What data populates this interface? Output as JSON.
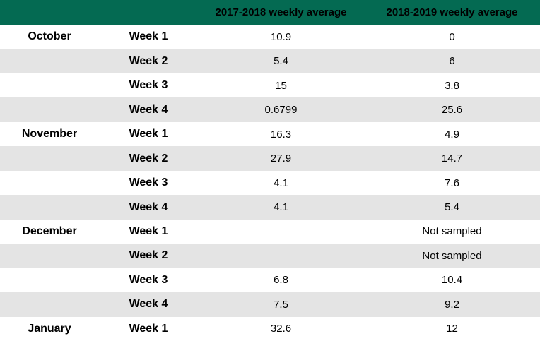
{
  "chart_data": {
    "type": "table",
    "columns": [
      {
        "label": ""
      },
      {
        "label": ""
      },
      {
        "label": "2017-2018 weekly average"
      },
      {
        "label": "2018-2019 weekly average"
      }
    ],
    "rows": [
      {
        "month": "October",
        "week": "Week 1",
        "avg_2017_2018": "10.9",
        "avg_2018_2019": "0"
      },
      {
        "month": "",
        "week": "Week 2",
        "avg_2017_2018": "5.4",
        "avg_2018_2019": "6"
      },
      {
        "month": "",
        "week": "Week 3",
        "avg_2017_2018": "15",
        "avg_2018_2019": "3.8"
      },
      {
        "month": "",
        "week": "Week 4",
        "avg_2017_2018": "0.6799",
        "avg_2018_2019": "25.6"
      },
      {
        "month": "November",
        "week": "Week 1",
        "avg_2017_2018": "16.3",
        "avg_2018_2019": "4.9"
      },
      {
        "month": "",
        "week": "Week 2",
        "avg_2017_2018": "27.9",
        "avg_2018_2019": "14.7"
      },
      {
        "month": "",
        "week": "Week 3",
        "avg_2017_2018": "4.1",
        "avg_2018_2019": "7.6"
      },
      {
        "month": "",
        "week": "Week 4",
        "avg_2017_2018": "4.1",
        "avg_2018_2019": "5.4"
      },
      {
        "month": "December",
        "week": "Week 1",
        "avg_2017_2018": "",
        "avg_2018_2019": "Not sampled"
      },
      {
        "month": "",
        "week": "Week 2",
        "avg_2017_2018": "",
        "avg_2018_2019": "Not sampled"
      },
      {
        "month": "",
        "week": "Week 3",
        "avg_2017_2018": "6.8",
        "avg_2018_2019": "10.4"
      },
      {
        "month": "",
        "week": "Week 4",
        "avg_2017_2018": "7.5",
        "avg_2018_2019": "9.2"
      },
      {
        "month": "January",
        "week": "Week 1",
        "avg_2017_2018": "32.6",
        "avg_2018_2019": "12"
      }
    ],
    "layout": {
      "striped": true,
      "header_position": "top"
    }
  },
  "colors": {
    "header_bg": "#046A52",
    "header_text": "#000000",
    "alt_row_bg": "#E4E4E4",
    "row_bg": "#FFFFFF",
    "text": "#000000"
  }
}
